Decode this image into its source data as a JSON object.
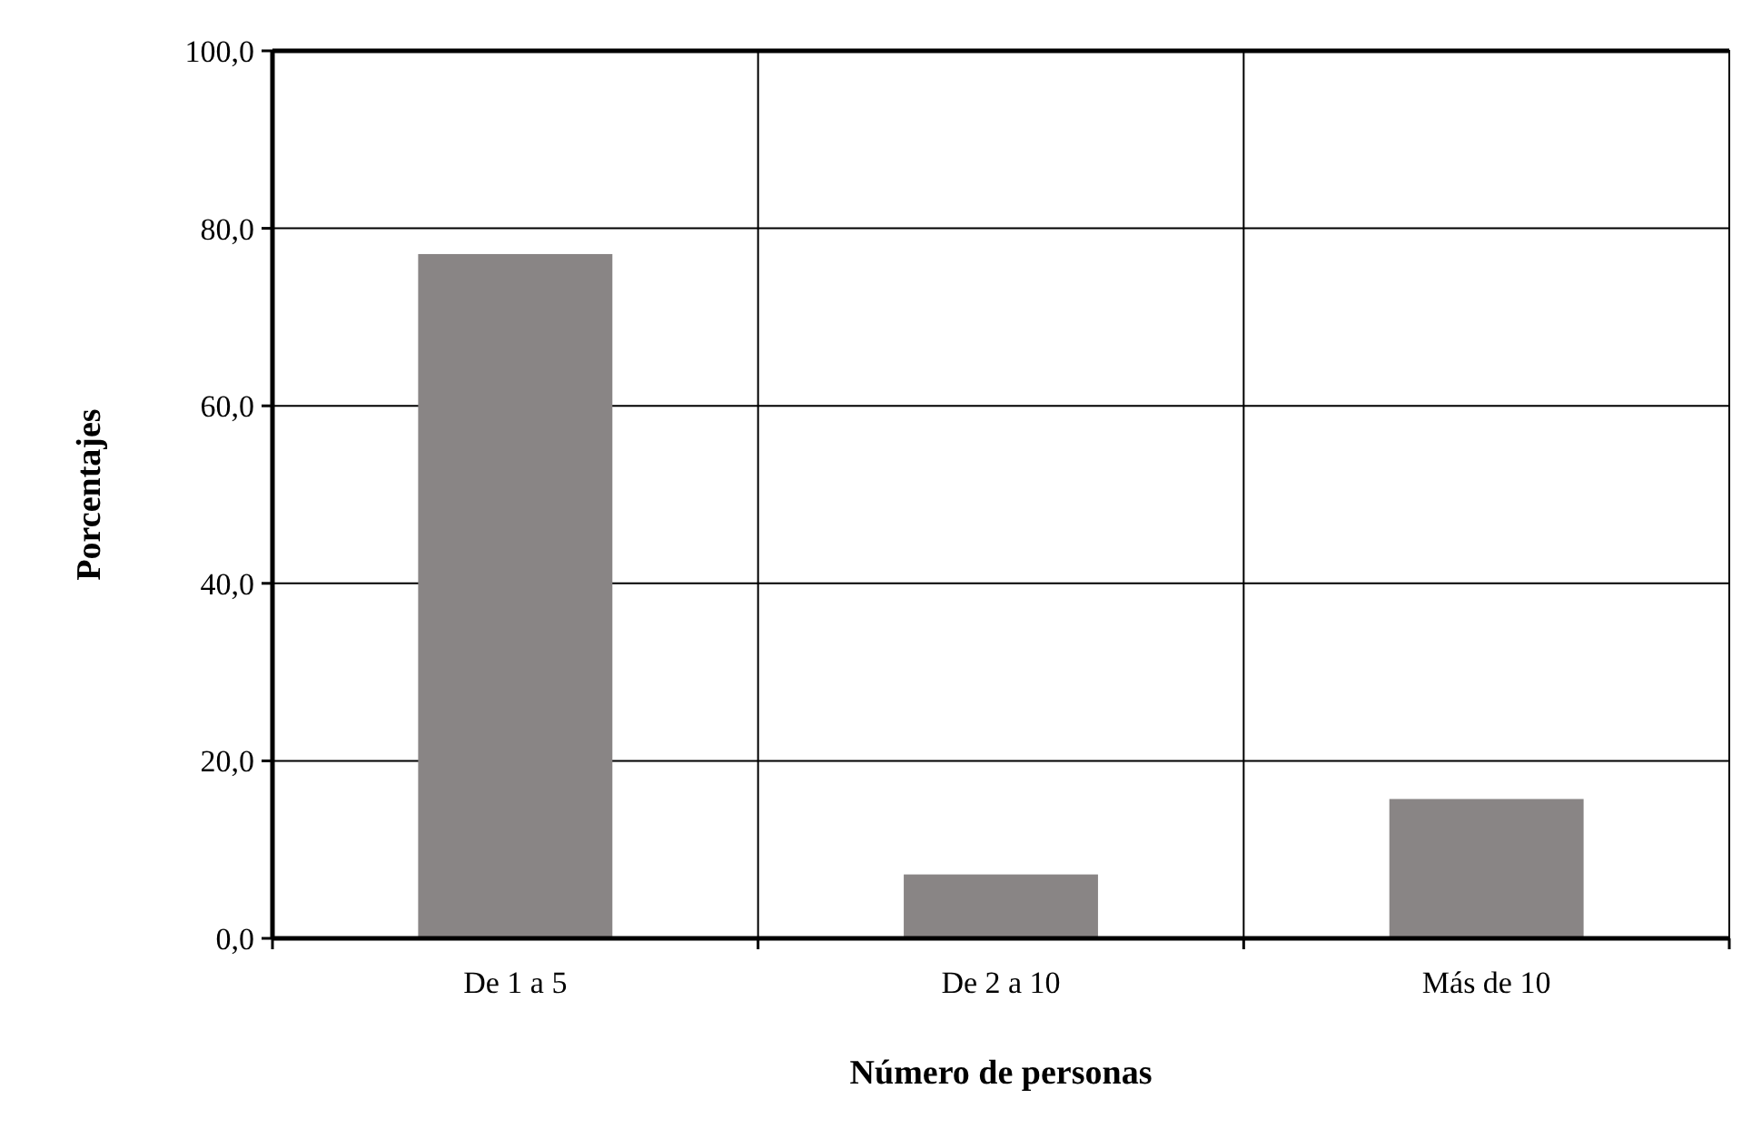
{
  "chart_data": {
    "type": "bar",
    "xlabel": "Número de personas",
    "ylabel": "Porcentajes",
    "categories": [
      "De 1 a 5",
      "De 2 a 10",
      "Más de 10"
    ],
    "values": [
      77.1,
      7.2,
      15.7
    ],
    "color": "#898585",
    "ylim": [
      0,
      100
    ],
    "yticks": [
      {
        "value": 0,
        "label": "0,0"
      },
      {
        "value": 20,
        "label": "20,0"
      },
      {
        "value": 40,
        "label": "40,0"
      },
      {
        "value": 60,
        "label": "60,0"
      },
      {
        "value": 80,
        "label": "80,0"
      },
      {
        "value": 100,
        "label": "100,0"
      }
    ],
    "grid": true
  }
}
